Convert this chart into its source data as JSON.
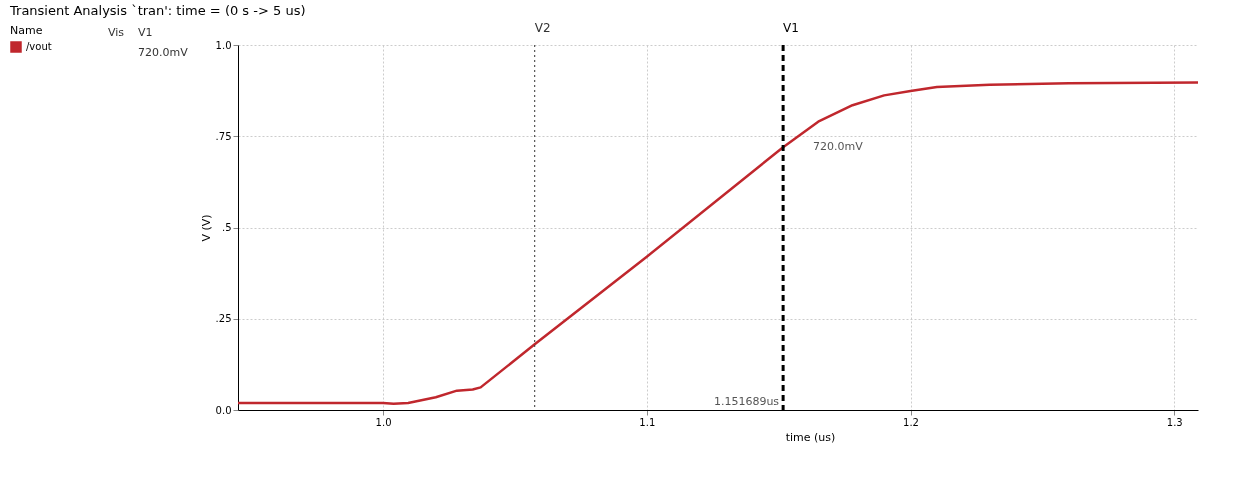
{
  "chart_data": {
    "type": "line",
    "title": "Transient Analysis `tran': time = (0 s -> 5 us)",
    "xlabel": "time (us)",
    "ylabel": "V (V)",
    "legend_title": "Name",
    "x": [
      0.945,
      1.0,
      1.004,
      1.0095,
      1.02,
      1.028,
      1.034,
      1.037,
      1.0575,
      1.1,
      1.151689,
      1.165,
      1.178,
      1.19,
      1.2,
      1.21,
      1.23,
      1.26,
      1.309
    ],
    "series": [
      {
        "name": "/vout",
        "color": "#c0272d",
        "values": [
          0.019,
          0.019,
          0.017,
          0.019,
          0.035,
          0.053,
          0.056,
          0.062,
          0.18,
          0.42,
          0.72,
          0.79,
          0.835,
          0.862,
          0.874,
          0.885,
          0.891,
          0.895,
          0.897
        ]
      }
    ],
    "xlim": [
      0.945,
      1.309
    ],
    "ylim": [
      0,
      1.0
    ],
    "xticks": [
      {
        "value": 1.0,
        "label": "1.0"
      },
      1.1,
      1.2,
      1.3
    ],
    "yticks": [
      {
        "value": 0,
        "label": "0.0"
      },
      {
        "value": 0.25,
        "label": ".25"
      },
      {
        "value": 0.5,
        "label": ".5"
      },
      {
        "value": 0.75,
        "label": ".75"
      },
      {
        "value": 1.0,
        "label": "1.0"
      }
    ],
    "ref_lines": [
      {
        "axis": "x",
        "value": 1.0575,
        "label": "V2",
        "line_style": "dotted",
        "color": "#333333"
      },
      {
        "axis": "x",
        "value": 1.151689,
        "label": "V1",
        "line_style": "dashed",
        "color": "#000000"
      }
    ],
    "annotations": [
      "Vis",
      "V1",
      "720.0mV",
      {
        "text": "720.0mV",
        "x": 1.151689,
        "y": 0.72
      },
      {
        "text": "1.151689us",
        "x": 1.151689,
        "y": 0
      }
    ],
    "grid": true,
    "legend": "left",
    "line_style": "solid",
    "marker": "none"
  }
}
